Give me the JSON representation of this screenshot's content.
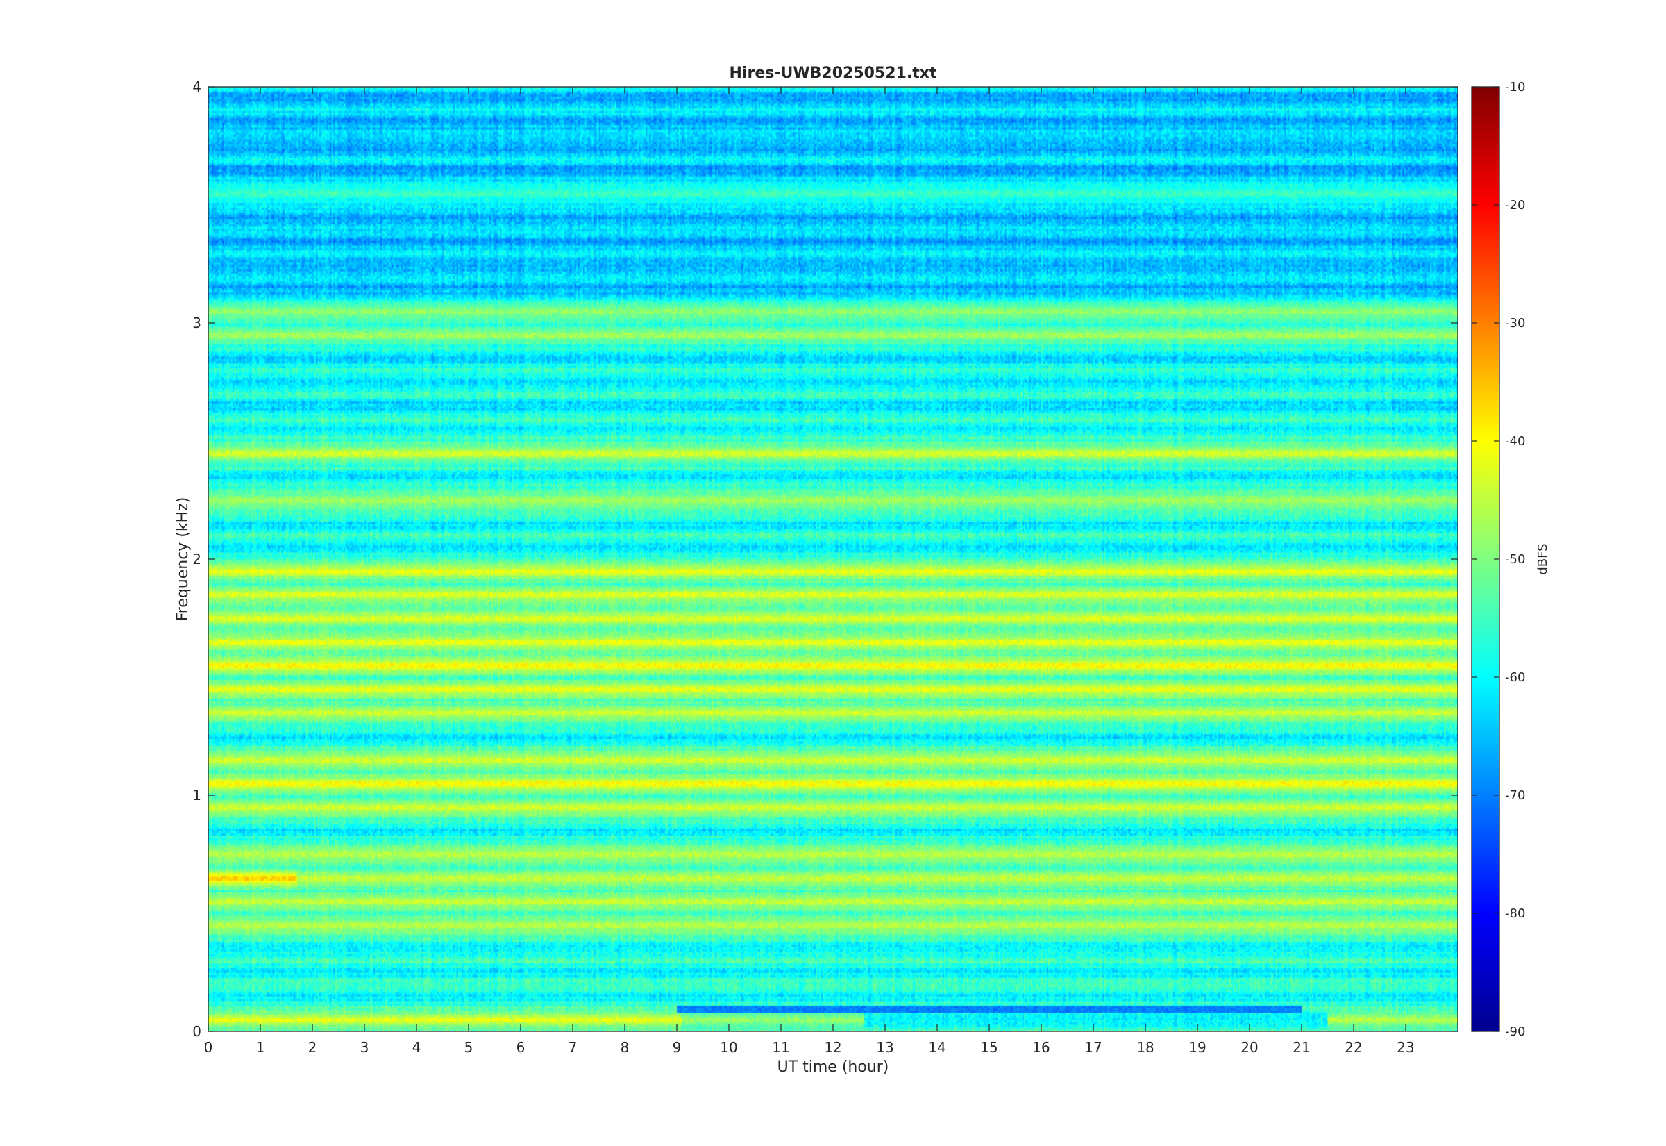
{
  "chart_data": {
    "type": "heatmap",
    "title": "Hires-UWB20250521.txt",
    "xlabel": "UT time (hour)",
    "ylabel": "Frequency (kHz)",
    "xlim": [
      0,
      24
    ],
    "ylim": [
      0,
      4
    ],
    "x_ticks": [
      "0",
      "1",
      "2",
      "3",
      "4",
      "5",
      "6",
      "7",
      "8",
      "9",
      "10",
      "11",
      "12",
      "13",
      "14",
      "15",
      "16",
      "17",
      "18",
      "19",
      "20",
      "21",
      "22",
      "23"
    ],
    "y_ticks": [
      "0",
      "1",
      "2",
      "3",
      "4"
    ],
    "colorbar": {
      "label": "dBFS",
      "colormap": "jet",
      "range": [
        -90,
        -10
      ],
      "ticks": [
        "-90",
        "-80",
        "-70",
        "-60",
        "-50",
        "-40",
        "-30",
        "-20",
        "-10"
      ]
    },
    "grid": false,
    "frequency_bands": [
      {
        "freq_khz": 0.05,
        "level_dbfs": -40,
        "hours": [
          0,
          9.1
        ]
      },
      {
        "freq_khz": 0.05,
        "level_dbfs": -47,
        "hours": [
          9.1,
          12.6
        ]
      },
      {
        "freq_khz": 0.05,
        "level_dbfs": -44,
        "hours": [
          21.5,
          24
        ]
      },
      {
        "freq_khz": 0.45,
        "level_dbfs": -44,
        "hours": [
          0,
          24
        ]
      },
      {
        "freq_khz": 0.55,
        "level_dbfs": -43,
        "hours": [
          0,
          24
        ]
      },
      {
        "freq_khz": 0.65,
        "level_dbfs": -34,
        "hours": [
          0,
          1.7
        ]
      },
      {
        "freq_khz": 0.65,
        "level_dbfs": -43,
        "hours": [
          1.7,
          24
        ]
      },
      {
        "freq_khz": 0.75,
        "level_dbfs": -44,
        "hours": [
          0,
          24
        ]
      },
      {
        "freq_khz": 0.95,
        "level_dbfs": -42,
        "hours": [
          0,
          24
        ]
      },
      {
        "freq_khz": 1.05,
        "level_dbfs": -38,
        "hours": [
          0,
          24
        ]
      },
      {
        "freq_khz": 1.15,
        "level_dbfs": -42,
        "hours": [
          0,
          24
        ]
      },
      {
        "freq_khz": 1.35,
        "level_dbfs": -42,
        "hours": [
          0,
          24
        ]
      },
      {
        "freq_khz": 1.45,
        "level_dbfs": -40,
        "hours": [
          0,
          24
        ]
      },
      {
        "freq_khz": 1.55,
        "level_dbfs": -38,
        "hours": [
          0,
          24
        ]
      },
      {
        "freq_khz": 1.65,
        "level_dbfs": -40,
        "hours": [
          0,
          24
        ]
      },
      {
        "freq_khz": 1.75,
        "level_dbfs": -41,
        "hours": [
          0,
          24
        ]
      },
      {
        "freq_khz": 1.85,
        "level_dbfs": -41,
        "hours": [
          0,
          24
        ]
      },
      {
        "freq_khz": 1.95,
        "level_dbfs": -40,
        "hours": [
          0,
          24
        ]
      },
      {
        "freq_khz": 2.25,
        "level_dbfs": -46,
        "hours": [
          0,
          24
        ]
      },
      {
        "freq_khz": 2.45,
        "level_dbfs": -42,
        "hours": [
          0,
          24
        ]
      },
      {
        "freq_khz": 2.95,
        "level_dbfs": -46,
        "hours": [
          0,
          24
        ]
      },
      {
        "freq_khz": 3.05,
        "level_dbfs": -47,
        "hours": [
          0,
          24
        ]
      },
      {
        "freq_khz": 3.55,
        "level_dbfs": -54,
        "hours": [
          0,
          24
        ]
      }
    ]
  }
}
